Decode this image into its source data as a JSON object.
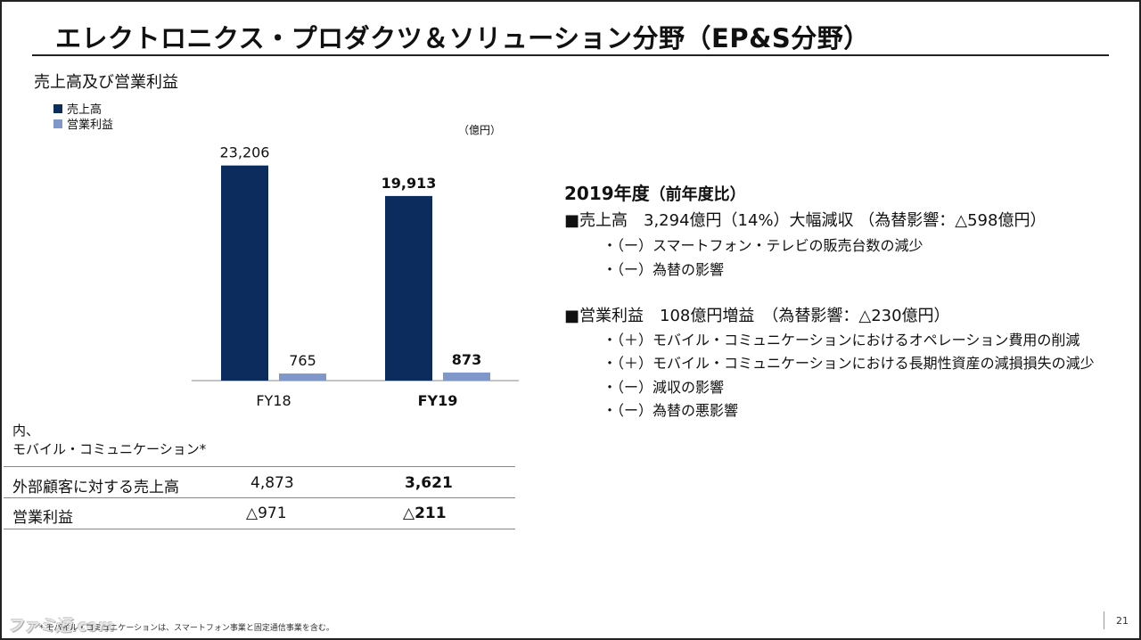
{
  "slide": {
    "title": "エレクトロニクス・プロダクツ＆ソリューション分野（EP&S分野）",
    "section_title": "売上高及び営業利益",
    "unit": "（億円）",
    "page_number": "21",
    "footnote": "* モバイル・コミュニケーションは、スマートフォン事業と固定通信事業を含む。",
    "watermark": "ファミ通.com"
  },
  "chart_data": {
    "type": "bar",
    "categories": [
      "FY18",
      "FY19"
    ],
    "series": [
      {
        "name": "売上高",
        "values": [
          23206,
          19913
        ],
        "labels": [
          "23,206",
          "19,913"
        ],
        "color": "#0b2c5c"
      },
      {
        "name": "営業利益",
        "values": [
          765,
          873
        ],
        "labels": [
          "765",
          "873"
        ],
        "color": "#8097c9"
      }
    ],
    "bold_category": "FY19",
    "ylim": [
      0,
      25000
    ],
    "grid": false,
    "legend_position": "top-left"
  },
  "mobile_table": {
    "heading_line1": "内、",
    "heading_line2": "モバイル・コミュニケーション*",
    "rows": [
      {
        "label": "外部顧客に対する売上高",
        "fy18": "4,873",
        "fy19": "3,621"
      },
      {
        "label": "営業利益",
        "fy18": "△971",
        "fy19": "△211"
      }
    ]
  },
  "summary": {
    "heading": "2019年度",
    "heading_paren": "（前年度比）",
    "sales_line": "■売上高　3,294億円（14%）大幅減収 （為替影響：△598億円）",
    "sales_points": [
      "・（ー）スマートフォン・テレビの販売台数の減少",
      "・（ー）為替の影響"
    ],
    "profit_line": "■営業利益　108億円増益　（為替影響：△230億円）",
    "profit_points": [
      "・（＋）モバイル・コミュニケーションにおけるオペレーション費用の削減",
      "・（＋）モバイル・コミュニケーションにおける長期性資産の減損損失の減少",
      "・（ー）減収の影響",
      "・（ー）為替の悪影響"
    ]
  }
}
